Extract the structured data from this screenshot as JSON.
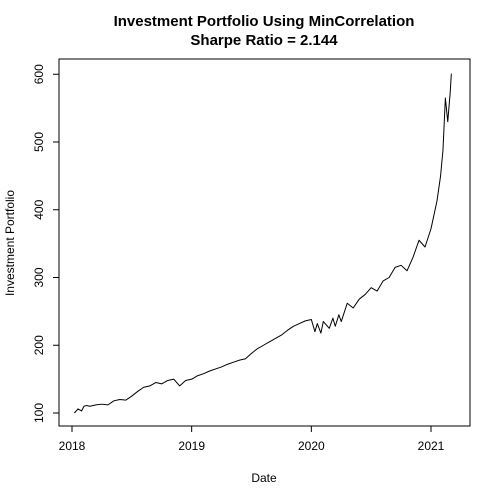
{
  "chart_data": {
    "type": "line",
    "title": "Investment Portfolio Using MinCorrelation",
    "subtitle": "Sharpe Ratio = 2.144",
    "xlabel": "Date",
    "ylabel": "Investment Portfolio",
    "x_ticks": [
      "2018",
      "2019",
      "2020",
      "2021"
    ],
    "y_ticks": [
      "100",
      "200",
      "300",
      "400",
      "500",
      "600"
    ],
    "x_range": [
      2018.0,
      2021.2
    ],
    "ylim": [
      85,
      620
    ],
    "grid": false,
    "legend": "none",
    "series": [
      {
        "color": "#000000",
        "x": [
          2018.02,
          2018.05,
          2018.08,
          2018.1,
          2018.12,
          2018.15,
          2018.2,
          2018.25,
          2018.3,
          2018.35,
          2018.4,
          2018.45,
          2018.5,
          2018.55,
          2018.6,
          2018.65,
          2018.7,
          2018.75,
          2018.8,
          2018.85,
          2018.9,
          2018.95,
          2019.0,
          2019.05,
          2019.1,
          2019.15,
          2019.2,
          2019.25,
          2019.3,
          2019.35,
          2019.4,
          2019.45,
          2019.5,
          2019.55,
          2019.6,
          2019.65,
          2019.7,
          2019.75,
          2019.8,
          2019.85,
          2019.9,
          2019.95,
          2020.0,
          2020.03,
          2020.05,
          2020.08,
          2020.1,
          2020.15,
          2020.18,
          2020.2,
          2020.23,
          2020.25,
          2020.3,
          2020.35,
          2020.4,
          2020.45,
          2020.5,
          2020.55,
          2020.6,
          2020.65,
          2020.7,
          2020.75,
          2020.8,
          2020.85,
          2020.9,
          2020.95,
          2021.0,
          2021.05,
          2021.08,
          2021.1,
          2021.12,
          2021.14,
          2021.16,
          2021.17
        ],
        "values": [
          100,
          106,
          103,
          110,
          111,
          110,
          112,
          113,
          112,
          118,
          120,
          119,
          125,
          132,
          138,
          140,
          145,
          143,
          148,
          150,
          140,
          148,
          150,
          155,
          158,
          162,
          165,
          168,
          172,
          175,
          178,
          180,
          188,
          195,
          200,
          205,
          210,
          215,
          222,
          228,
          232,
          236,
          238,
          220,
          232,
          218,
          235,
          225,
          240,
          228,
          245,
          235,
          262,
          255,
          268,
          275,
          285,
          280,
          295,
          300,
          315,
          318,
          310,
          330,
          355,
          345,
          372,
          413,
          450,
          488,
          565,
          530,
          572,
          601
        ]
      }
    ]
  }
}
